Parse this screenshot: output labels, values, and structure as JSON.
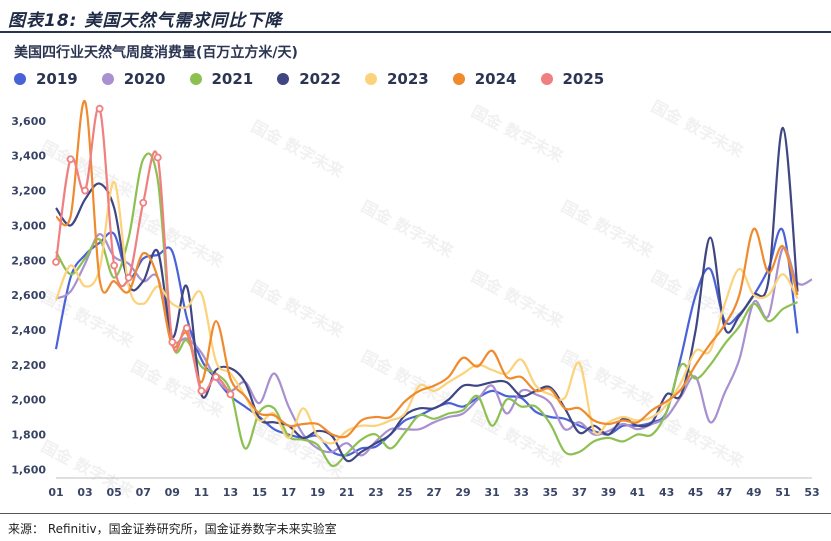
{
  "figure_title": "图表18:  美国天然气需求同比下降",
  "watermark": "国金 数字未来",
  "source": "来源：   Refinitiv，国金证券研究所，国金证券数字未来实验室",
  "colors": {
    "2019": "#4a62d8",
    "2020": "#a990d0",
    "2021": "#8cc152",
    "2022": "#3f4682",
    "2023": "#fcd27a",
    "2024": "#ef8a2f",
    "2025": "#f08080"
  },
  "chart_data": {
    "type": "line",
    "title": "美国四行业天然气周度消费量(百万立方米/天)",
    "xlabel": "",
    "ylabel": "",
    "x_ticks": [
      "01",
      "03",
      "05",
      "07",
      "09",
      "11",
      "13",
      "15",
      "17",
      "19",
      "21",
      "23",
      "25",
      "27",
      "29",
      "31",
      "33",
      "35",
      "37",
      "39",
      "41",
      "43",
      "45",
      "47",
      "49",
      "51",
      "53"
    ],
    "y_ticks": [
      "1,600",
      "1,800",
      "2,000",
      "2,200",
      "2,400",
      "2,600",
      "2,800",
      "3,000",
      "3,200",
      "3,400",
      "3,600"
    ],
    "ylim": [
      1550,
      3720
    ],
    "xlim": [
      1,
      53
    ],
    "grid": false,
    "legend_position": "top-left",
    "series": [
      {
        "name": "2019",
        "x": [
          1,
          2,
          3,
          4,
          5,
          6,
          7,
          8,
          9,
          10,
          11,
          12,
          13,
          14,
          15,
          16,
          17,
          18,
          19,
          20,
          21,
          22,
          23,
          24,
          25,
          26,
          27,
          28,
          29,
          30,
          31,
          32,
          33,
          34,
          35,
          36,
          37,
          38,
          39,
          40,
          41,
          42,
          43,
          44,
          45,
          46,
          47,
          48,
          49,
          50,
          51,
          52
        ],
        "values": [
          2290,
          2700,
          2830,
          2900,
          2950,
          2700,
          2810,
          2830,
          2850,
          2470,
          2230,
          2120,
          2020,
          1960,
          1900,
          1830,
          1800,
          1780,
          1790,
          1700,
          1680,
          1720,
          1730,
          1800,
          1880,
          1910,
          1950,
          1980,
          1960,
          2010,
          2050,
          2020,
          2010,
          1930,
          1900,
          1890,
          1850,
          1820,
          1800,
          1850,
          1850,
          1870,
          1930,
          2250,
          2600,
          2750,
          2450,
          2490,
          2600,
          2750,
          2970,
          2380
        ]
      },
      {
        "name": "2020",
        "x": [
          1,
          2,
          3,
          4,
          5,
          6,
          7,
          8,
          9,
          10,
          11,
          12,
          13,
          14,
          15,
          16,
          17,
          18,
          19,
          20,
          21,
          22,
          23,
          24,
          25,
          26,
          27,
          28,
          29,
          30,
          31,
          32,
          33,
          34,
          35,
          36,
          37,
          38,
          39,
          40,
          41,
          42,
          43,
          44,
          45,
          46,
          47,
          48,
          49,
          50,
          51,
          52,
          53
        ],
        "values": [
          2580,
          2620,
          2780,
          2950,
          2820,
          2780,
          2680,
          2700,
          2350,
          2350,
          2270,
          2120,
          2050,
          2100,
          1980,
          2150,
          1960,
          1800,
          1720,
          1700,
          1750,
          1680,
          1760,
          1830,
          1830,
          1830,
          1870,
          1900,
          1920,
          2000,
          2080,
          1920,
          2050,
          2030,
          1980,
          1830,
          1870,
          1800,
          1820,
          1860,
          1830,
          1860,
          1900,
          2020,
          2130,
          1870,
          2040,
          2230,
          2560,
          2480,
          2870,
          2670,
          2690
        ]
      },
      {
        "name": "2021",
        "x": [
          1,
          2,
          3,
          4,
          5,
          6,
          7,
          8,
          9,
          10,
          11,
          12,
          13,
          14,
          15,
          16,
          17,
          18,
          19,
          20,
          21,
          22,
          23,
          24,
          25,
          26,
          27,
          28,
          29,
          30,
          31,
          32,
          33,
          34,
          35,
          36,
          37,
          38,
          39,
          40,
          41,
          42,
          43,
          44,
          45,
          46,
          47,
          48,
          49,
          50,
          51,
          52
        ],
        "values": [
          2850,
          2720,
          2810,
          2920,
          2700,
          2930,
          3380,
          3260,
          2330,
          2340,
          2190,
          2150,
          2050,
          1720,
          1930,
          1950,
          1790,
          1770,
          1740,
          1620,
          1690,
          1770,
          1800,
          1720,
          1810,
          1910,
          1890,
          1920,
          1940,
          2020,
          1850,
          2000,
          1960,
          1960,
          1860,
          1700,
          1700,
          1760,
          1780,
          1760,
          1800,
          1800,
          1930,
          2200,
          2120,
          2200,
          2320,
          2420,
          2550,
          2450,
          2520,
          2560
        ]
      },
      {
        "name": "2022",
        "x": [
          1,
          2,
          3,
          4,
          5,
          6,
          7,
          8,
          9,
          10,
          11,
          12,
          13,
          14,
          15,
          16,
          17,
          18,
          19,
          20,
          21,
          22,
          23,
          24,
          25,
          26,
          27,
          28,
          29,
          30,
          31,
          32,
          33,
          34,
          35,
          36,
          37,
          38,
          39,
          40,
          41,
          42,
          43,
          44,
          45,
          46,
          47,
          48,
          49,
          50,
          51,
          52
        ],
        "values": [
          3100,
          3000,
          3150,
          3240,
          3100,
          2660,
          2680,
          2850,
          2360,
          2650,
          2030,
          2170,
          2180,
          2100,
          1890,
          1870,
          1850,
          1780,
          1820,
          1790,
          1650,
          1700,
          1750,
          1800,
          1910,
          1950,
          1950,
          2000,
          2080,
          2080,
          2100,
          2100,
          2020,
          2050,
          2070,
          1950,
          1810,
          1850,
          1800,
          1890,
          1850,
          1870,
          2030,
          2030,
          2400,
          2930,
          2410,
          2480,
          2600,
          2680,
          3560,
          2620
        ]
      },
      {
        "name": "2023",
        "x": [
          1,
          2,
          3,
          4,
          5,
          6,
          7,
          8,
          9,
          10,
          11,
          12,
          13,
          14,
          15,
          16,
          17,
          18,
          19,
          20,
          21,
          22,
          23,
          24,
          25,
          26,
          27,
          28,
          29,
          30,
          31,
          32,
          33,
          34,
          35,
          36,
          37,
          38,
          39,
          40,
          41,
          42,
          43,
          44,
          45,
          46,
          47,
          48,
          49,
          50,
          51,
          52
        ],
        "values": [
          2570,
          2770,
          2650,
          2750,
          3250,
          2650,
          2550,
          2650,
          2550,
          2530,
          2610,
          2220,
          2150,
          2020,
          1880,
          1920,
          1780,
          1950,
          1790,
          1750,
          1820,
          1850,
          1850,
          1880,
          1920,
          2080,
          2050,
          2100,
          2150,
          2200,
          2170,
          2150,
          2230,
          2080,
          2030,
          2010,
          2210,
          1820,
          1870,
          1900,
          1880,
          1900,
          1970,
          2100,
          2280,
          2280,
          2550,
          2750,
          2600,
          2600,
          2720,
          2580
        ]
      },
      {
        "name": "2024",
        "x": [
          1,
          2,
          3,
          4,
          5,
          6,
          7,
          8,
          9,
          10,
          11,
          12,
          13,
          14,
          15,
          16,
          17,
          18,
          19,
          20,
          21,
          22,
          23,
          24,
          25,
          26,
          27,
          28,
          29,
          30,
          31,
          32,
          33,
          34,
          35,
          36,
          37,
          38,
          39,
          40,
          41,
          42,
          43,
          44,
          45,
          46,
          47,
          48,
          49,
          50,
          51,
          52
        ],
        "values": [
          3050,
          3050,
          3710,
          2690,
          2680,
          2620,
          2840,
          2700,
          2310,
          2380,
          2100,
          2450,
          2120,
          2020,
          1920,
          1910,
          1850,
          1860,
          1860,
          1800,
          1790,
          1880,
          1900,
          1900,
          1990,
          2050,
          2080,
          2130,
          2240,
          2190,
          2280,
          2130,
          2130,
          2050,
          2060,
          1950,
          1950,
          1880,
          1860,
          1880,
          1870,
          1940,
          1990,
          2060,
          2200,
          2320,
          2430,
          2600,
          2980,
          2730,
          2880,
          2600
        ]
      },
      {
        "name": "2025",
        "x": [
          1,
          2,
          3,
          4,
          5,
          6,
          7,
          8,
          9,
          10,
          11,
          12,
          13
        ],
        "values": [
          2790,
          3380,
          3200,
          3670,
          2770,
          2700,
          3130,
          3390,
          2330,
          2410,
          2050,
          2130,
          2030
        ]
      }
    ]
  }
}
